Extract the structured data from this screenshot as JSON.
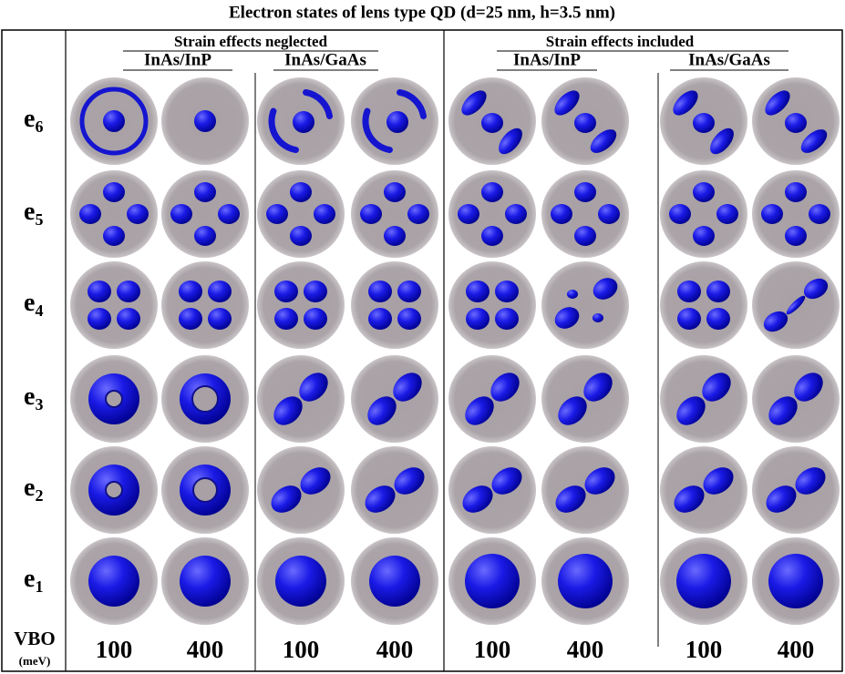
{
  "title": "Electron states of lens type QD (d=25 nm, h=3.5 nm)",
  "groups": [
    {
      "label": "Strain effects neglected",
      "materials": [
        "InAs/InP",
        "InAs/GaAs"
      ]
    },
    {
      "label": "Strain effects included",
      "materials": [
        "InAs/InP",
        "InAs/GaAs"
      ]
    }
  ],
  "states": [
    {
      "base": "e",
      "sub": "6"
    },
    {
      "base": "e",
      "sub": "5"
    },
    {
      "base": "e",
      "sub": "4"
    },
    {
      "base": "e",
      "sub": "3"
    },
    {
      "base": "e",
      "sub": "2"
    },
    {
      "base": "e",
      "sub": "1"
    }
  ],
  "vbo": {
    "label": "VBO",
    "unit": "(meV)",
    "values": [
      100,
      400,
      100,
      400,
      100,
      400,
      100,
      400
    ]
  }
}
